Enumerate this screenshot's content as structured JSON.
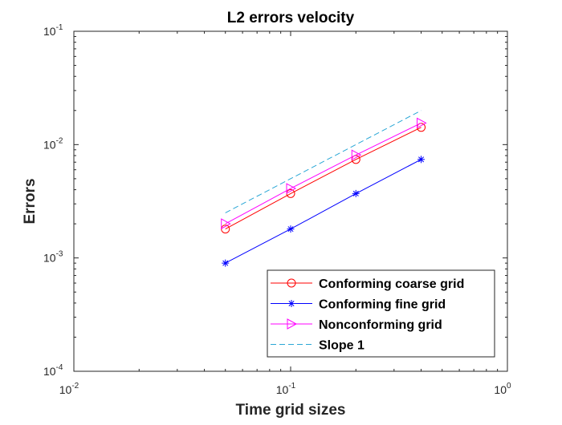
{
  "chart_data": {
    "type": "line",
    "title": "L2 errors velocity",
    "xlabel": "Time grid sizes",
    "ylabel": "Errors",
    "xscale": "log",
    "yscale": "log",
    "xlim": [
      0.01,
      1
    ],
    "ylim": [
      0.0001,
      0.1
    ],
    "x_ticks": [
      {
        "value": 0.01,
        "base": "10",
        "exp": "-2"
      },
      {
        "value": 0.1,
        "base": "10",
        "exp": "-1"
      },
      {
        "value": 1,
        "base": "10",
        "exp": "0"
      }
    ],
    "y_ticks": [
      {
        "value": 0.0001,
        "base": "10",
        "exp": "-4"
      },
      {
        "value": 0.001,
        "base": "10",
        "exp": "-3"
      },
      {
        "value": 0.01,
        "base": "10",
        "exp": "-2"
      },
      {
        "value": 0.1,
        "base": "10",
        "exp": "-1"
      }
    ],
    "legend_position": "bottom-right",
    "series": [
      {
        "name": "Conforming coarse grid",
        "color": "#ff0000",
        "marker": "circle",
        "dash": "solid",
        "x": [
          0.05,
          0.1,
          0.2,
          0.4
        ],
        "values": [
          0.0018,
          0.0037,
          0.0074,
          0.0142
        ]
      },
      {
        "name": "Conforming fine grid",
        "color": "#0000ff",
        "marker": "asterisk",
        "dash": "solid",
        "x": [
          0.05,
          0.1,
          0.2,
          0.4
        ],
        "values": [
          0.0009,
          0.0018,
          0.0037,
          0.0074
        ]
      },
      {
        "name": "Nonconforming grid",
        "color": "#ff00ff",
        "marker": "triangle-right",
        "dash": "solid",
        "x": [
          0.05,
          0.1,
          0.2,
          0.4
        ],
        "values": [
          0.002,
          0.0041,
          0.0081,
          0.0155
        ]
      },
      {
        "name": "Slope 1",
        "color": "#2aa7d6",
        "marker": "none",
        "dash": "dashed",
        "x": [
          0.05,
          0.4
        ],
        "values": [
          0.0025,
          0.02
        ]
      }
    ]
  }
}
